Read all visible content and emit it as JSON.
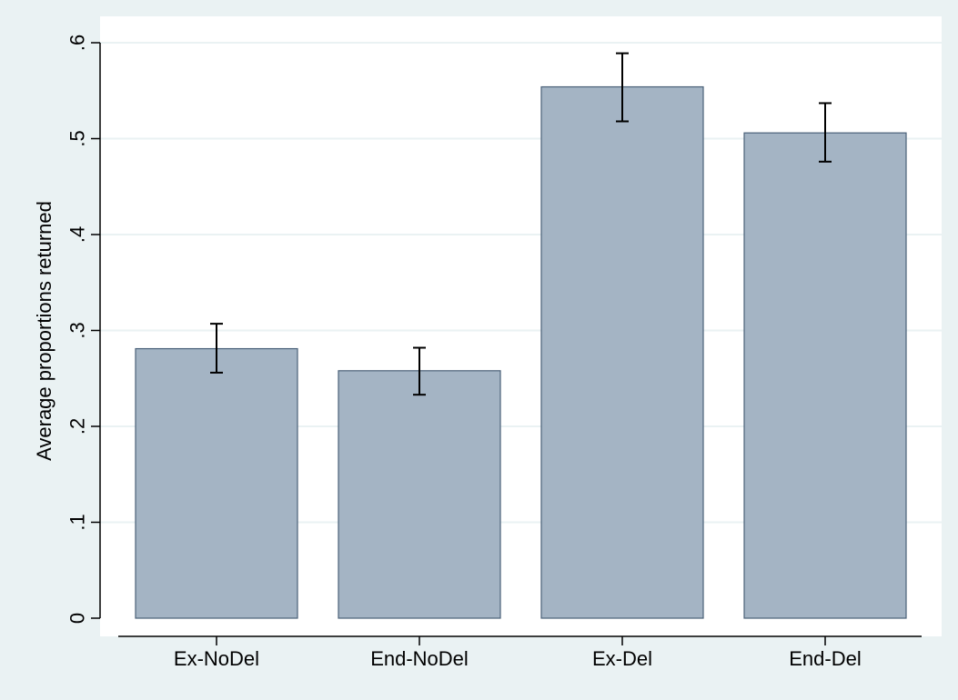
{
  "chart_data": {
    "type": "bar",
    "ylabel": "Average proportions returned",
    "xlabel": "",
    "categories": [
      "Ex-NoDel",
      "End-NoDel",
      "Ex-Del",
      "End-Del"
    ],
    "values": [
      0.281,
      0.258,
      0.554,
      0.506
    ],
    "error_low": [
      0.256,
      0.233,
      0.518,
      0.476
    ],
    "error_high": [
      0.307,
      0.282,
      0.589,
      0.537
    ],
    "ylim": [
      0,
      0.6
    ],
    "yticks": [
      0,
      0.1,
      0.2,
      0.3,
      0.4,
      0.5,
      0.6
    ],
    "ytick_labels": [
      "0",
      ".1",
      ".2",
      ".3",
      ".4",
      ".5",
      ".6"
    ],
    "grid": true,
    "legend": "none",
    "colors": {
      "outer_background": "#eaf2f3",
      "plot_background": "#ffffff",
      "bar_fill": "#a4b4c4",
      "bar_edge": "#4a6078",
      "gridline": "#eaf2f3",
      "error_bar": "#000000"
    }
  }
}
